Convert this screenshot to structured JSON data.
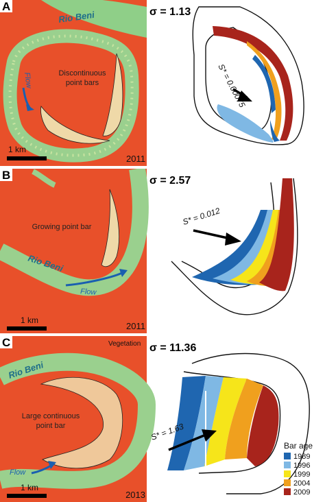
{
  "panels": [
    {
      "letter": "A",
      "river_label": "Rio Beni",
      "flow_label": "Flow",
      "bar_label_1": "Discontinuous",
      "bar_label_2": "point bars",
      "scale_label": "1 km",
      "year": "2011",
      "sigma": "σ = 1.13",
      "s_label": "S* = 0.00075"
    },
    {
      "letter": "B",
      "river_label": "Rio Beni",
      "flow_label": "Flow",
      "bar_label_1": "Growing point bar",
      "scale_label": "1 km",
      "year": "2011",
      "sigma": "σ = 2.57",
      "s_label": "S* = 0.012"
    },
    {
      "letter": "C",
      "river_label": "Rio Beni",
      "flow_label": "Flow",
      "bar_label_1": "Large continuous",
      "bar_label_2": "point bar",
      "veg_label": "Vegetation",
      "scale_label": "1 km",
      "year": "2013",
      "sigma": "σ = 11.36",
      "s_label": "S* = 1.63"
    }
  ],
  "legend": {
    "title": "Bar age",
    "items": [
      {
        "year": "1989",
        "color": "#1f66b0"
      },
      {
        "year": "1996",
        "color": "#7fb8e4"
      },
      {
        "year": "1999",
        "color": "#f6e51a"
      },
      {
        "year": "2004",
        "color": "#f0a01e"
      },
      {
        "year": "2009",
        "color": "#a8241c"
      }
    ]
  },
  "colors": {
    "vegetation": "#e8502a",
    "river": "#9ad08e",
    "river_edge": "#d8e8a8",
    "bar": "#efd9a8"
  }
}
